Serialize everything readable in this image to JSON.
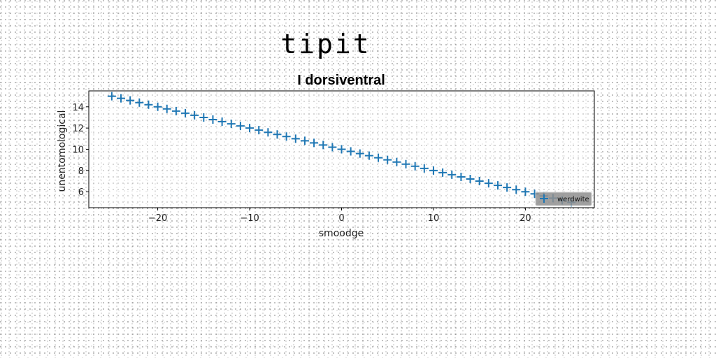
{
  "page_title": "tipit",
  "chart_data": {
    "type": "scatter",
    "title": "I dorsiventral",
    "xlabel": "smoodge",
    "ylabel": "unentomological",
    "xlim": [
      -27.5,
      27.5
    ],
    "ylim": [
      4.5,
      15.5
    ],
    "x_ticks": [
      -20,
      -10,
      0,
      10,
      20
    ],
    "y_ticks": [
      6,
      8,
      10,
      12,
      14
    ],
    "x_tick_labels": [
      "−20",
      "−10",
      "0",
      "10",
      "20"
    ],
    "y_tick_labels": [
      "6",
      "8",
      "10",
      "12",
      "14"
    ],
    "grid": false,
    "legend_position": "lower-right",
    "marker": "plus",
    "color": "#1f77b4",
    "series": [
      {
        "name": "werdwite",
        "x": [
          -25,
          -24,
          -23,
          -22,
          -21,
          -20,
          -19,
          -18,
          -17,
          -16,
          -15,
          -14,
          -13,
          -12,
          -11,
          -10,
          -9,
          -8,
          -7,
          -6,
          -5,
          -4,
          -3,
          -2,
          -1,
          0,
          1,
          2,
          3,
          4,
          5,
          6,
          7,
          8,
          9,
          10,
          11,
          12,
          13,
          14,
          15,
          16,
          17,
          18,
          19,
          20,
          21,
          22,
          23,
          24,
          25
        ],
        "y": [
          15.0,
          14.8,
          14.6,
          14.4,
          14.2,
          14.0,
          13.8,
          13.6,
          13.4,
          13.2,
          13.0,
          12.8,
          12.6,
          12.4,
          12.2,
          12.0,
          11.8,
          11.6,
          11.4,
          11.2,
          11.0,
          10.8,
          10.6,
          10.4,
          10.2,
          10.0,
          9.8,
          9.6,
          9.4,
          9.2,
          9.0,
          8.8,
          8.6,
          8.4,
          8.2,
          8.0,
          7.8,
          7.6,
          7.4,
          7.2,
          7.0,
          6.8,
          6.6,
          6.4,
          6.2,
          6.0,
          5.8,
          5.6,
          5.4,
          5.2,
          5.0
        ]
      }
    ]
  }
}
